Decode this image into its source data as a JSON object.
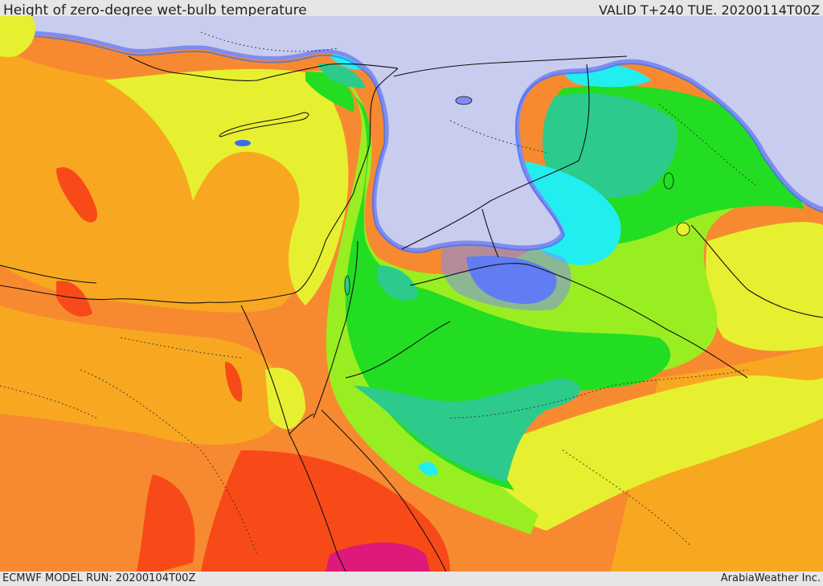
{
  "header": {
    "title": "Height of zero-degree wet-bulb temperature",
    "valid_time": "VALID T+240 TUE. 20200114T00Z"
  },
  "footer": {
    "model_run": "ECMWF MODEL RUN: 20200104T00Z",
    "credit": "ArabiaWeather Inc."
  },
  "map": {
    "region": "Eastern Mediterranean / Middle East",
    "palette": {
      "lavender": "#c8ccee",
      "pale_blue": "#a8b4f0",
      "periwinkle": "#7f8cf0",
      "blue": "#3a6cf5",
      "cyan": "#22eef0",
      "turquoise": "#2ccb8c",
      "green": "#22dd22",
      "lime": "#99ee22",
      "yellow": "#e6f030",
      "orange": "#f8a820",
      "dark_orange": "#f78a30",
      "red_orange": "#f84a18",
      "magenta": "#e0187a"
    },
    "borders_color": "#111111"
  }
}
